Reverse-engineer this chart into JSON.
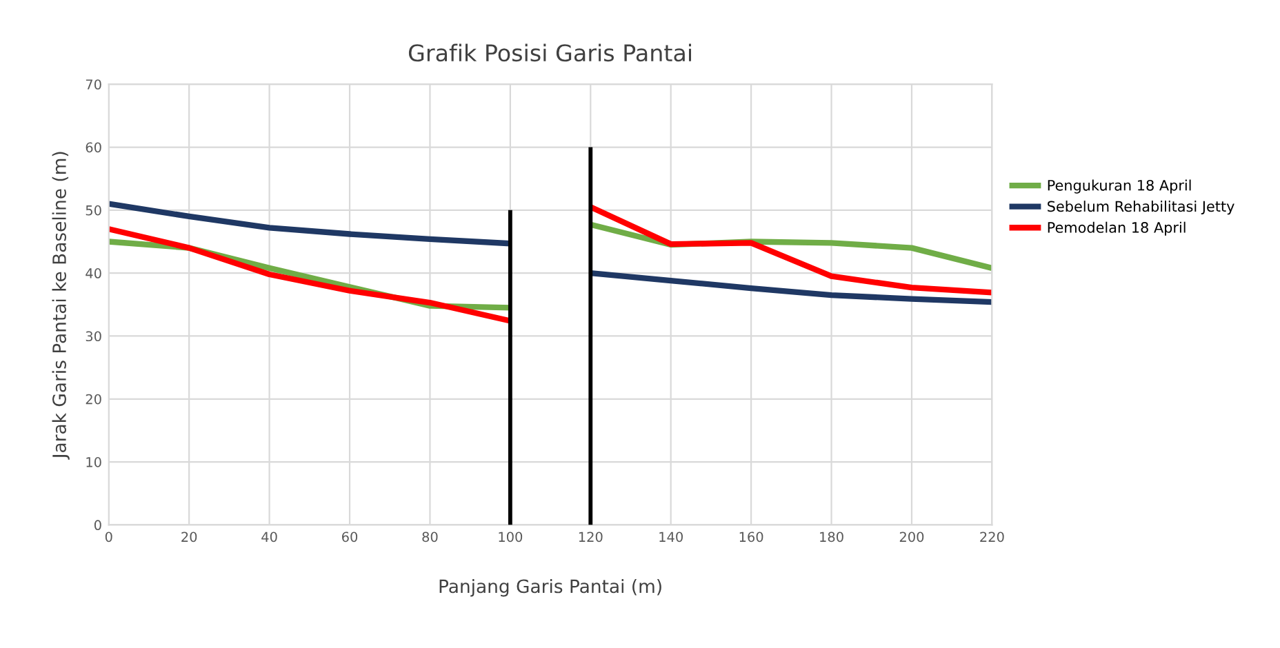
{
  "chart_data": {
    "type": "line",
    "title": "Grafik Posisi Garis Pantai",
    "xlabel": "Panjang Garis Pantai (m)",
    "ylabel": "Jarak Garis Pantai ke Baseline (m)",
    "x": [
      0,
      20,
      40,
      60,
      80,
      100,
      110,
      120,
      140,
      160,
      180,
      200,
      220
    ],
    "series": [
      {
        "name": "Pengukuran 18 April",
        "color": "#70ad47",
        "values": [
          45,
          44,
          40.8,
          37.8,
          34.8,
          34.5,
          null,
          47.7,
          44.5,
          45,
          44.8,
          44,
          40.8
        ]
      },
      {
        "name": "Sebelum Rehabilitasi Jetty",
        "color": "#1f3864",
        "values": [
          51,
          49,
          47.2,
          46.2,
          45.4,
          44.7,
          null,
          40,
          38.8,
          37.6,
          36.5,
          35.9,
          35.4
        ]
      },
      {
        "name": "Pemodelan 18 April",
        "color": "#ff0000",
        "values": [
          47,
          44,
          39.8,
          37.2,
          35.3,
          32.4,
          null,
          50.5,
          44.6,
          44.8,
          39.5,
          37.7,
          36.9
        ]
      },
      {
        "type": "bar",
        "color": "#000000",
        "x": [
          100,
          120
        ],
        "values": [
          50,
          60
        ]
      }
    ],
    "xlim": [
      0,
      220
    ],
    "xticks": [
      0,
      20,
      40,
      60,
      80,
      100,
      120,
      140,
      160,
      180,
      200,
      220
    ],
    "ylim": [
      0,
      70
    ],
    "yticks": [
      0,
      10,
      20,
      30,
      40,
      50,
      60,
      70
    ],
    "grid": true,
    "legend": "right",
    "line_style": "solid"
  }
}
